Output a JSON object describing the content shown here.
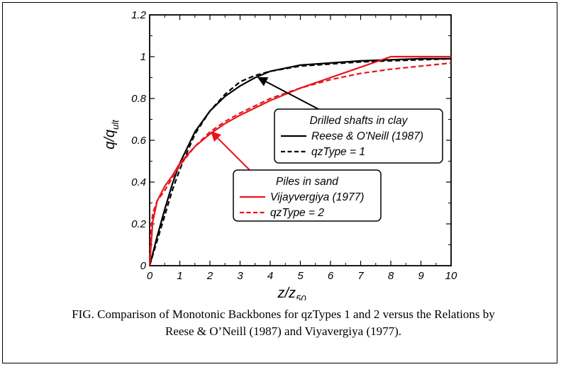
{
  "chart_data": {
    "type": "line",
    "xlabel": "z/z",
    "xlabel_sub": "50",
    "ylabel": "q/q",
    "ylabel_sub": "ult",
    "xlim": [
      0,
      10
    ],
    "ylim": [
      0,
      1.2
    ],
    "xticks": [
      0,
      1,
      2,
      3,
      4,
      5,
      6,
      7,
      8,
      9,
      10
    ],
    "yticks": [
      0,
      0.2,
      0.4,
      0.6,
      0.8,
      1,
      1.2
    ],
    "ytick_labels": [
      "0",
      "0.2",
      "0.4",
      "0.6",
      "0.8",
      "1",
      "1.2"
    ],
    "grid": false,
    "series": [
      {
        "name": "Reese & O'Neill (1987)",
        "color": "#000000",
        "dash": "solid",
        "x": [
          0,
          0.25,
          0.5,
          0.75,
          1,
          1.5,
          2,
          2.5,
          3,
          3.5,
          4,
          5,
          6,
          7,
          8,
          9,
          10
        ],
        "y": [
          0,
          0.14,
          0.27,
          0.39,
          0.49,
          0.64,
          0.74,
          0.81,
          0.86,
          0.9,
          0.93,
          0.96,
          0.97,
          0.98,
          0.985,
          0.99,
          0.99
        ]
      },
      {
        "name": "qzType = 1",
        "color": "#000000",
        "dash": "dashed",
        "x": [
          0,
          0.25,
          0.5,
          0.75,
          1,
          1.5,
          2,
          2.5,
          3,
          3.5,
          4,
          5,
          6,
          7,
          8,
          9,
          10
        ],
        "y": [
          0,
          0.12,
          0.24,
          0.36,
          0.46,
          0.63,
          0.74,
          0.82,
          0.88,
          0.91,
          0.93,
          0.955,
          0.965,
          0.975,
          0.98,
          0.985,
          0.99
        ]
      },
      {
        "name": "Vijayvergiya (1977)",
        "color": "#e8141b",
        "dash": "solid",
        "x": [
          0,
          0.1,
          0.25,
          0.5,
          0.75,
          1,
          1.5,
          2,
          2.5,
          3,
          4,
          5,
          6,
          7,
          8,
          9,
          10
        ],
        "y": [
          0,
          0.21,
          0.31,
          0.38,
          0.43,
          0.49,
          0.57,
          0.63,
          0.68,
          0.72,
          0.79,
          0.85,
          0.9,
          0.95,
          1,
          1,
          1
        ]
      },
      {
        "name": "qzType = 2",
        "color": "#e8141b",
        "dash": "dashed",
        "x": [
          0,
          0.05,
          0.1,
          0.25,
          0.5,
          0.75,
          1,
          1.5,
          2,
          2.5,
          3,
          4,
          5,
          6,
          7,
          8,
          9,
          10
        ],
        "y": [
          0,
          0.18,
          0.25,
          0.31,
          0.36,
          0.42,
          0.48,
          0.57,
          0.64,
          0.69,
          0.73,
          0.8,
          0.85,
          0.89,
          0.92,
          0.94,
          0.955,
          0.97
        ]
      }
    ],
    "legends": [
      {
        "title": "Drilled shafts in clay",
        "items": [
          {
            "label": "Reese & O'Neill (1987)",
            "color": "#000000",
            "dash": "solid"
          },
          {
            "label": "qzType = 1",
            "color": "#000000",
            "dash": "dashed"
          }
        ],
        "arrow_color": "#000000",
        "arrow_target": [
          3.6,
          0.9
        ]
      },
      {
        "title": "Piles in sand",
        "items": [
          {
            "label": "Vijayvergiya (1977)",
            "color": "#e8141b",
            "dash": "solid"
          },
          {
            "label": "qzType = 2",
            "color": "#e8141b",
            "dash": "dashed"
          }
        ],
        "arrow_color": "#e8141b",
        "arrow_target": [
          2.05,
          0.64
        ]
      }
    ]
  },
  "caption": {
    "line1": "FIG. Comparison of Monotonic Backbones for qzTypes 1 and 2 versus the Relations by",
    "line2": "Reese & O’Neill (1987) and Viyavergiya (1977)."
  }
}
